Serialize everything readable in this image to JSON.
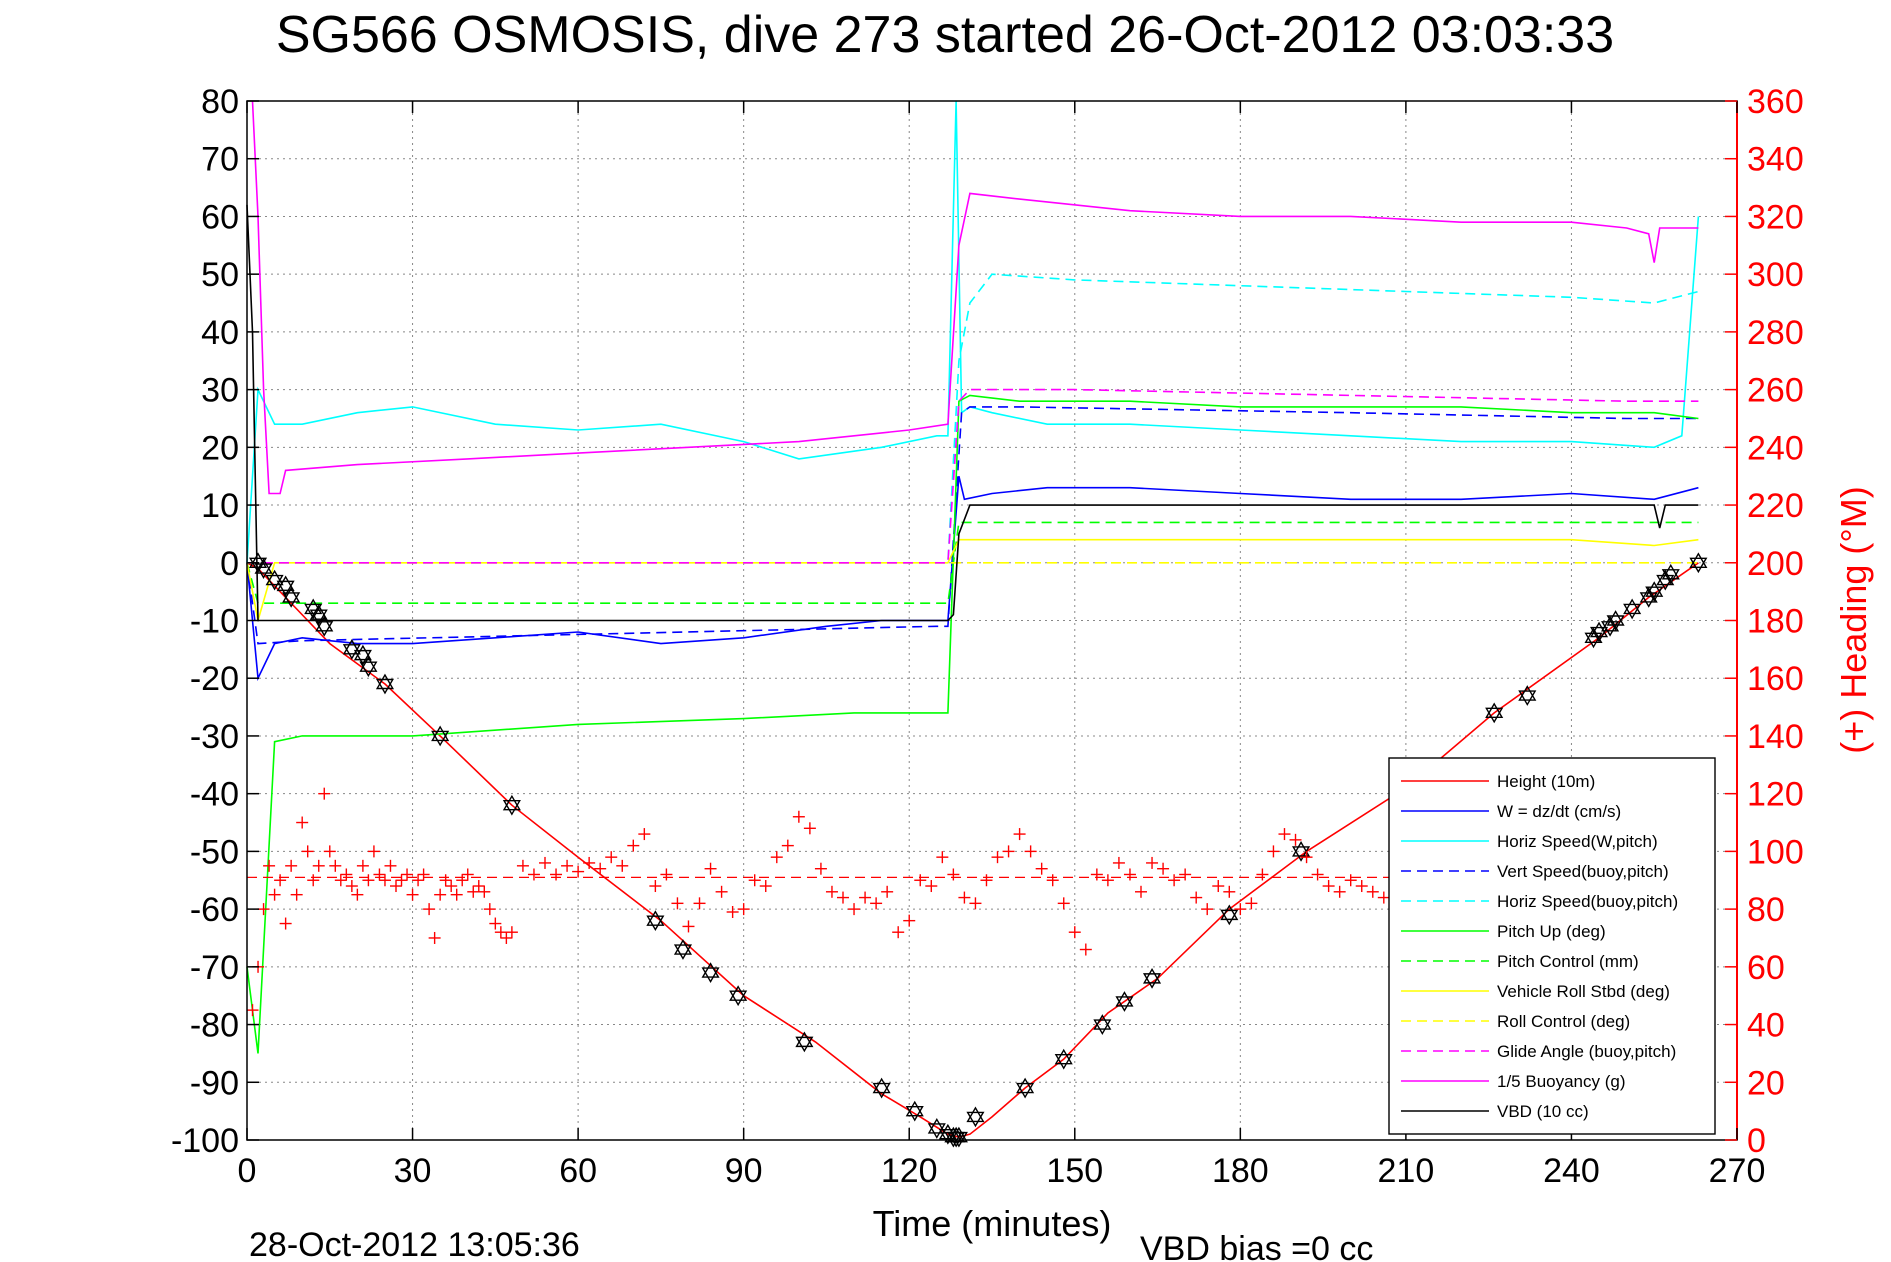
{
  "chart_data": {
    "type": "line",
    "title": "SG566 OSMOSIS, dive 273 started 26-Oct-2012 03:03:33",
    "xlabel": "Time (minutes)",
    "ylabel_right": "(+) Heading (°M)",
    "footer_left": "28-Oct-2012 13:05:36",
    "footer_right": "VBD bias =0 cc",
    "xlim": [
      0,
      270
    ],
    "ylim": [
      -100,
      80
    ],
    "y2lim": [
      0,
      360
    ],
    "x_ticks": [
      "0",
      "30",
      "60",
      "90",
      "120",
      "150",
      "180",
      "210",
      "240",
      "270"
    ],
    "y_ticks": [
      "80",
      "70",
      "60",
      "50",
      "40",
      "30",
      "20",
      "10",
      "0",
      "-10",
      "-20",
      "-30",
      "-40",
      "-50",
      "-60",
      "-70",
      "-80",
      "-90",
      "-100"
    ],
    "y2_ticks": [
      "360",
      "340",
      "320",
      "300",
      "280",
      "260",
      "240",
      "220",
      "200",
      "180",
      "160",
      "140",
      "120",
      "100",
      "80",
      "60",
      "40",
      "20",
      "0"
    ],
    "grid": true,
    "legend_position": "bottom-right",
    "series": [
      {
        "name": "Height (10m)",
        "color": "#ff0000",
        "dash": "solid",
        "x": [
          0,
          2,
          5,
          9,
          15,
          25,
          35,
          48,
          60,
          75,
          90,
          103,
          115,
          122,
          127,
          129,
          131,
          135,
          141,
          148,
          156,
          165,
          178,
          192,
          210,
          226,
          245,
          254,
          263
        ],
        "y": [
          0,
          -1,
          -4,
          -8,
          -14,
          -21,
          -30,
          -42,
          -51,
          -62,
          -75,
          -83,
          -92,
          -96,
          -99,
          -99.5,
          -99,
          -96,
          -91,
          -86,
          -78,
          -72,
          -60,
          -50,
          -39,
          -26,
          -13,
          -6,
          0
        ]
      },
      {
        "name": "W = dz/dt (cm/s)",
        "color": "#0000ff",
        "dash": "solid",
        "x": [
          0,
          2,
          5,
          10,
          20,
          30,
          45,
          60,
          75,
          90,
          105,
          115,
          125,
          127,
          129,
          130,
          135,
          145,
          160,
          180,
          200,
          220,
          240,
          255,
          263
        ],
        "y": [
          0,
          -20,
          -14,
          -13,
          -14,
          -14,
          -13,
          -12,
          -14,
          -13,
          -11,
          -10,
          -10,
          -10,
          15,
          11,
          12,
          13,
          13,
          12,
          11,
          11,
          12,
          11,
          13
        ]
      },
      {
        "name": "Horiz Speed(W,pitch)",
        "color": "#00ffff",
        "dash": "solid",
        "x": [
          0,
          2,
          5,
          10,
          20,
          30,
          45,
          60,
          75,
          90,
          100,
          115,
          125,
          127,
          128.5,
          129.5,
          131,
          135,
          145,
          160,
          180,
          200,
          220,
          240,
          255,
          260,
          263
        ],
        "y": [
          0,
          30,
          24,
          24,
          26,
          27,
          24,
          23,
          24,
          21,
          18,
          20,
          22,
          22,
          80,
          26,
          27,
          26,
          24,
          24,
          23,
          22,
          21,
          21,
          20,
          22,
          60
        ]
      },
      {
        "name": "Vert Speed(buoy,pitch)",
        "color": "#0000ff",
        "dash": "dash",
        "x": [
          0,
          2,
          10,
          125,
          127,
          129.5,
          131,
          140,
          200,
          250,
          263
        ],
        "y": [
          0,
          -14,
          -13.5,
          -11,
          -11,
          26,
          27,
          27,
          26,
          25,
          25
        ]
      },
      {
        "name": "Horiz Speed(buoy,pitch)",
        "color": "#00ffff",
        "dash": "dash",
        "x": [
          0,
          2,
          126,
          127,
          129,
          131,
          135,
          150,
          180,
          210,
          240,
          255,
          263
        ],
        "y": [
          0,
          0,
          0,
          0,
          35,
          45,
          50,
          49,
          48,
          47,
          46,
          45,
          47
        ]
      },
      {
        "name": "Pitch Up (deg)",
        "color": "#00ff00",
        "dash": "solid",
        "x": [
          0,
          2,
          5,
          10,
          30,
          60,
          90,
          110,
          126,
          127,
          129,
          131,
          140,
          160,
          180,
          200,
          220,
          240,
          255,
          263
        ],
        "y": [
          -70,
          -85,
          -31,
          -30,
          -30,
          -28,
          -27,
          -26,
          -26,
          -26,
          28,
          29,
          28,
          28,
          27,
          27,
          27,
          26,
          26,
          25
        ]
      },
      {
        "name": "Pitch Control (mm)",
        "color": "#00ff00",
        "dash": "dash",
        "x": [
          0,
          2,
          5,
          126,
          127,
          129,
          131,
          263
        ],
        "y": [
          0,
          -7,
          -7,
          -7,
          -7,
          7,
          7,
          7
        ]
      },
      {
        "name": "Vehicle Roll Stbd (deg)",
        "color": "#ffff00",
        "dash": "solid",
        "x": [
          0,
          2,
          5,
          30,
          60,
          90,
          120,
          126,
          127,
          129,
          131,
          140,
          160,
          180,
          200,
          220,
          240,
          255,
          263
        ],
        "y": [
          0,
          -10,
          0,
          0,
          0,
          0,
          0,
          0,
          0,
          4,
          4,
          4,
          4,
          4,
          4,
          4,
          4,
          3,
          4
        ]
      },
      {
        "name": "Roll Control (deg)",
        "color": "#ffff00",
        "dash": "dash",
        "x": [
          0,
          263
        ],
        "y": [
          0,
          0
        ]
      },
      {
        "name": "Glide Angle (buoy,pitch)",
        "color": "#ff00ff",
        "dash": "dash",
        "x": [
          0,
          2,
          126,
          127,
          129,
          131,
          150,
          200,
          250,
          263
        ],
        "y": [
          0,
          0,
          0,
          0,
          28,
          30,
          30,
          29,
          28,
          28
        ]
      },
      {
        "name": "1/5 Buoyancy (g)",
        "color": "#ff00ff",
        "dash": "solid",
        "x": [
          1,
          2,
          3,
          4,
          6,
          7,
          20,
          40,
          60,
          80,
          100,
          120,
          127,
          129,
          131,
          140,
          160,
          180,
          200,
          220,
          240,
          250,
          254,
          255,
          256,
          263
        ],
        "y": [
          80,
          60,
          30,
          12,
          12,
          16,
          17,
          18,
          19,
          20,
          21,
          23,
          24,
          55,
          64,
          63,
          61,
          60,
          60,
          59,
          59,
          58,
          57,
          52,
          58,
          58
        ]
      },
      {
        "name": "VBD (10 cc)",
        "color": "#000000",
        "dash": "solid",
        "x": [
          0,
          1,
          2,
          3,
          126,
          127,
          128,
          129,
          131,
          255,
          256,
          257,
          263
        ],
        "y": [
          62,
          40,
          -10,
          -10,
          -10,
          -10,
          -9,
          5,
          10,
          10,
          6,
          10,
          10
        ]
      }
    ],
    "heading_series": {
      "name": "(+) Heading (°M)",
      "color": "#ff0000",
      "marker": "+",
      "axis": "right",
      "mean": 91,
      "x": [
        1,
        2,
        3,
        4,
        5,
        6,
        7,
        8,
        9,
        10,
        11,
        12,
        13,
        14,
        15,
        16,
        17,
        18,
        19,
        20,
        21,
        22,
        23,
        24,
        25,
        26,
        27,
        28,
        29,
        30,
        31,
        32,
        33,
        34,
        35,
        36,
        37,
        38,
        39,
        40,
        41,
        42,
        43,
        44,
        45,
        46,
        47,
        48,
        50,
        52,
        54,
        56,
        58,
        60,
        62,
        64,
        66,
        68,
        70,
        72,
        74,
        76,
        78,
        80,
        82,
        84,
        86,
        88,
        90,
        92,
        94,
        96,
        98,
        100,
        102,
        104,
        106,
        108,
        110,
        112,
        114,
        116,
        118,
        120,
        122,
        124,
        126,
        128,
        130,
        132,
        134,
        136,
        138,
        140,
        142,
        144,
        146,
        148,
        150,
        152,
        154,
        156,
        158,
        160,
        162,
        164,
        166,
        168,
        170,
        172,
        174,
        176,
        178,
        180,
        182,
        184,
        186,
        188,
        190,
        192,
        194,
        196,
        198,
        200,
        202,
        204,
        206,
        208
      ],
      "y": [
        45,
        60,
        80,
        95,
        85,
        90,
        75,
        95,
        85,
        110,
        100,
        90,
        95,
        120,
        100,
        95,
        90,
        92,
        88,
        85,
        95,
        90,
        100,
        92,
        90,
        95,
        88,
        90,
        92,
        85,
        90,
        92,
        80,
        70,
        85,
        90,
        88,
        85,
        90,
        92,
        86,
        88,
        86,
        80,
        75,
        72,
        70,
        72,
        95,
        92,
        96,
        92,
        95,
        93,
        96,
        94,
        98,
        95,
        102,
        106,
        88,
        92,
        82,
        74,
        82,
        94,
        86,
        79,
        80,
        90,
        88,
        98,
        102,
        112,
        108,
        94,
        86,
        84,
        80,
        84,
        82,
        86,
        72,
        76,
        90,
        88,
        98,
        92,
        84,
        82,
        90,
        98,
        100,
        106,
        100,
        94,
        90,
        82,
        72,
        66,
        92,
        90,
        96,
        92,
        86,
        96,
        94,
        90,
        92,
        84,
        80,
        88,
        86,
        80,
        82,
        92,
        100,
        106,
        104,
        98,
        92,
        88,
        86,
        90,
        88,
        86,
        84,
        88
      ]
    },
    "depth_markers": {
      "marker": "hexagram",
      "x": [
        2,
        3,
        5,
        7,
        8,
        12,
        13,
        14,
        19,
        21,
        22,
        25,
        35,
        48,
        74,
        79,
        84,
        89,
        101,
        115,
        121,
        125,
        127,
        128,
        128.5,
        129,
        132,
        141,
        148,
        155,
        159,
        164,
        178,
        191,
        226,
        232,
        244,
        245,
        247,
        248,
        251,
        254,
        255,
        257,
        258,
        263
      ],
      "y": [
        0,
        -1,
        -3,
        -4,
        -6,
        -8,
        -9,
        -11,
        -15,
        -16,
        -18,
        -21,
        -30,
        -42,
        -62,
        -67,
        -71,
        -75,
        -83,
        -91,
        -95,
        -98,
        -99,
        -99.5,
        -99.5,
        -99.5,
        -96,
        -91,
        -86,
        -80,
        -76,
        -72,
        -61,
        -50,
        -26,
        -23,
        -13,
        -12,
        -11,
        -10,
        -8,
        -6,
        -5,
        -3,
        -2,
        0
      ]
    }
  }
}
